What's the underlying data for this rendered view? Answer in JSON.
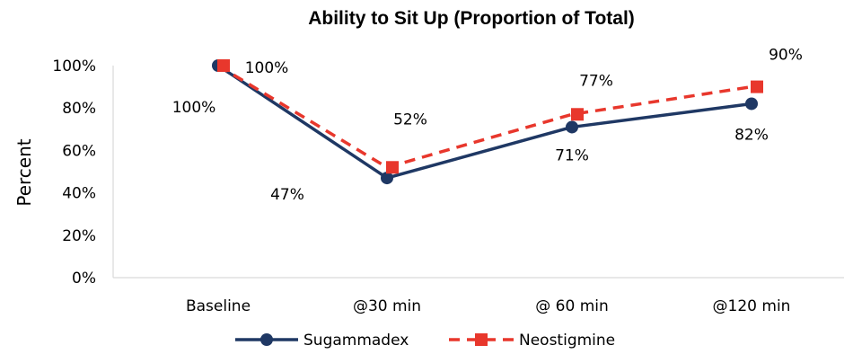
{
  "chart_data": {
    "type": "line",
    "title": "Ability to Sit Up (Proportion of Total)",
    "xlabel": "",
    "ylabel": "Percent",
    "categories": [
      "Baseline",
      "@30 min",
      "@ 60 min",
      "@120 min"
    ],
    "ylim": [
      0,
      100
    ],
    "yticks": [
      "0%",
      "20%",
      "40%",
      "60%",
      "80%",
      "100%"
    ],
    "grid": false,
    "legend_position": "bottom",
    "series": [
      {
        "name": "Sugammadex",
        "values": [
          100,
          47,
          71,
          82
        ],
        "labels": [
          "100%",
          "47%",
          "71%",
          "82%"
        ],
        "color": "#1f3864",
        "line_style": "solid",
        "marker": "circle"
      },
      {
        "name": "Neostigmine",
        "values": [
          100,
          52,
          77,
          90
        ],
        "labels": [
          "100%",
          "52%",
          "77%",
          "90%"
        ],
        "color": "#e8372c",
        "line_style": "dashed",
        "marker": "square"
      }
    ]
  }
}
